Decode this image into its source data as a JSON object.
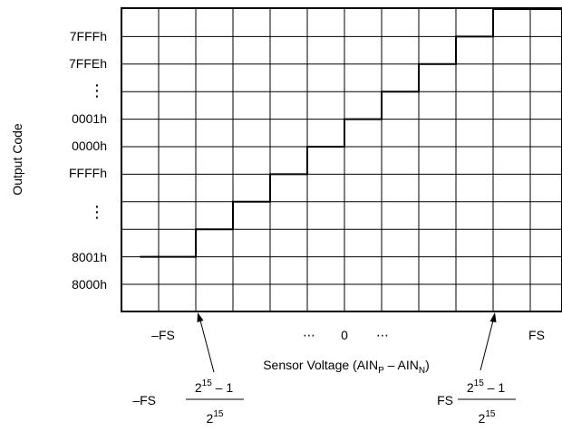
{
  "chart_data": {
    "type": "line",
    "step": true,
    "ylabel": "Output Code",
    "xlabel": {
      "main": "Sensor Voltage (AIN",
      "p_sub": "P",
      "minus": " – AIN",
      "n_sub": "N",
      "close": ")"
    },
    "ytick_labels": [
      "7FFFh",
      "7FFEh",
      "⋮",
      "0001h",
      "0000h",
      "FFFFh",
      "⋮",
      "8001h",
      "8000h"
    ],
    "xtick_labels": {
      "neg_fs": "–FS",
      "dots_left": "⋯",
      "zero": "0",
      "dots_right": "⋯",
      "fs": "FS"
    },
    "annotations": {
      "left": {
        "prefix": "–FS",
        "numerator_base": "2",
        "numerator_exp": "15",
        "numerator_rest": " – 1",
        "denominator_base": "2",
        "denominator_exp": "15"
      },
      "right": {
        "prefix": "FS",
        "numerator_base": "2",
        "numerator_exp": "15",
        "numerator_rest": " – 1",
        "denominator_base": "2",
        "denominator_exp": "15"
      }
    },
    "grid": true,
    "steps": {
      "x_edges": [
        -5.5,
        -4,
        -3,
        -2,
        -1,
        0,
        1,
        2,
        3,
        4,
        6.2
      ],
      "levels": [
        -4,
        -3,
        -2,
        -1,
        0,
        1,
        2,
        3,
        4,
        5
      ]
    },
    "xlim": [
      -6,
      6.2
    ],
    "ylim": [
      -5.5,
      4.5
    ],
    "colors": {
      "line": "#000000",
      "grid": "#000000",
      "background": "#ffffff"
    }
  }
}
